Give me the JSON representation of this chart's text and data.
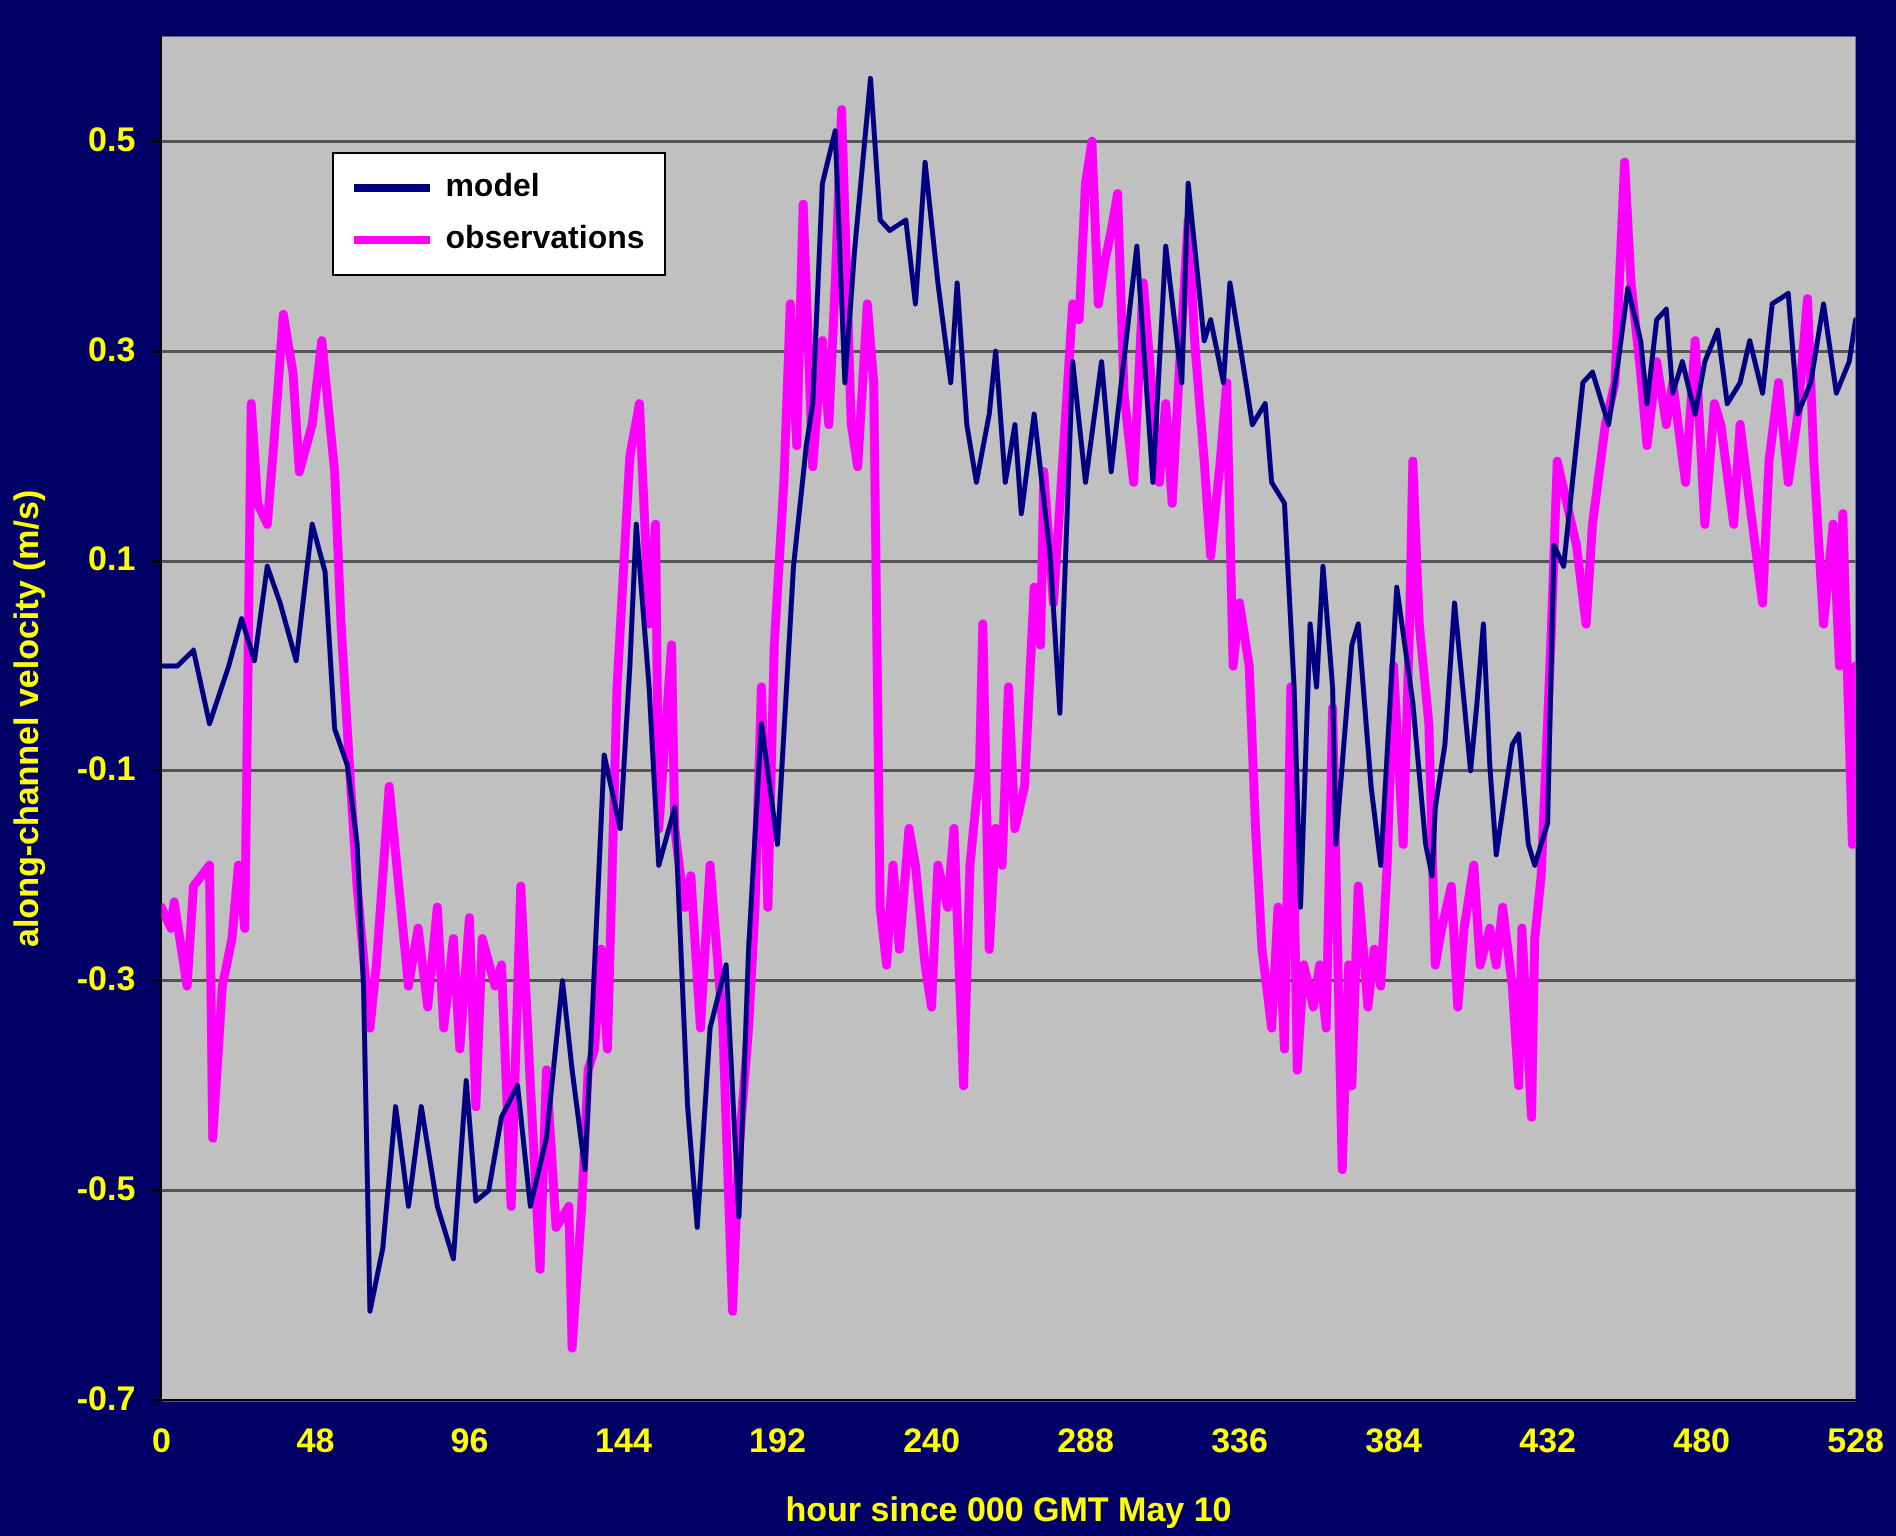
{
  "chart_data": {
    "type": "line",
    "xlabel": "hour since 000 GMT May 10",
    "ylabel": "along-channel velocity (m/s)",
    "xlim": [
      0,
      528
    ],
    "xticks": [
      0,
      48,
      96,
      144,
      192,
      240,
      288,
      336,
      384,
      432,
      480,
      528
    ],
    "ylim": [
      -0.7,
      0.6
    ],
    "yticks": [
      -0.7,
      -0.5,
      -0.3,
      -0.1,
      0.1,
      0.3,
      0.5
    ],
    "grid": "y",
    "legend": "top left",
    "marker": "none",
    "line_style": "solid",
    "series": [
      {
        "name": "model",
        "color": "#000080",
        "x": [
          0,
          5,
          10,
          15,
          21,
          25,
          29,
          33,
          37,
          42,
          47,
          51,
          54,
          58,
          61,
          63,
          65,
          69,
          73,
          77,
          81,
          86,
          91,
          95,
          98,
          102,
          106,
          111,
          115,
          120,
          125,
          128,
          132,
          135,
          138,
          143,
          146,
          148,
          152,
          155,
          160,
          164,
          167,
          171,
          176,
          180,
          183,
          187,
          192,
          197,
          201,
          203,
          206,
          210,
          213,
          216,
          221,
          224,
          227,
          232,
          235,
          238,
          242,
          246,
          248,
          251,
          254,
          258,
          260,
          263,
          266,
          268,
          272,
          277,
          280,
          284,
          288,
          293,
          296,
          304,
          309,
          313,
          318,
          320,
          325,
          327,
          331,
          333,
          338,
          340,
          344,
          346,
          350,
          353,
          355,
          358,
          360,
          362,
          365,
          366,
          371,
          373,
          377,
          380,
          385,
          390,
          394,
          396,
          397,
          400,
          403,
          406,
          408,
          410,
          412,
          414,
          416,
          421,
          423,
          426,
          428,
          432,
          434,
          437,
          443,
          446,
          451,
          454,
          457,
          461,
          463,
          466,
          469,
          471,
          474,
          478,
          481,
          485,
          488,
          492,
          495,
          499,
          502,
          507,
          510,
          514,
          518,
          522,
          526,
          528
        ],
        "values": [
          0.0,
          0.0,
          0.015,
          -0.055,
          0.0,
          0.045,
          0.005,
          0.095,
          0.06,
          0.005,
          0.135,
          0.09,
          -0.06,
          -0.095,
          -0.17,
          -0.305,
          -0.615,
          -0.555,
          -0.42,
          -0.515,
          -0.42,
          -0.515,
          -0.565,
          -0.395,
          -0.51,
          -0.5,
          -0.43,
          -0.4,
          -0.515,
          -0.45,
          -0.3,
          -0.385,
          -0.48,
          -0.285,
          -0.085,
          -0.155,
          0.0,
          0.135,
          -0.02,
          -0.19,
          -0.135,
          -0.42,
          -0.535,
          -0.345,
          -0.285,
          -0.525,
          -0.27,
          -0.055,
          -0.17,
          0.095,
          0.21,
          0.25,
          0.46,
          0.51,
          0.27,
          0.395,
          0.56,
          0.425,
          0.415,
          0.425,
          0.345,
          0.48,
          0.365,
          0.27,
          0.365,
          0.23,
          0.175,
          0.24,
          0.3,
          0.175,
          0.23,
          0.145,
          0.24,
          0.105,
          -0.045,
          0.29,
          0.175,
          0.29,
          0.185,
          0.4,
          0.175,
          0.4,
          0.27,
          0.46,
          0.31,
          0.33,
          0.27,
          0.365,
          0.27,
          0.23,
          0.25,
          0.175,
          0.155,
          -0.02,
          -0.23,
          0.04,
          -0.02,
          0.095,
          -0.02,
          -0.17,
          0.02,
          0.04,
          -0.115,
          -0.19,
          0.075,
          -0.035,
          -0.17,
          -0.2,
          -0.135,
          -0.075,
          0.06,
          -0.035,
          -0.1,
          -0.035,
          0.04,
          -0.095,
          -0.18,
          -0.075,
          -0.065,
          -0.17,
          -0.19,
          -0.15,
          0.115,
          0.095,
          0.27,
          0.28,
          0.23,
          0.29,
          0.36,
          0.31,
          0.25,
          0.33,
          0.34,
          0.26,
          0.29,
          0.24,
          0.29,
          0.32,
          0.25,
          0.27,
          0.31,
          0.26,
          0.345,
          0.355,
          0.24,
          0.27,
          0.345,
          0.26,
          0.29,
          0.33
        ]
      },
      {
        "name": "observations",
        "color": "#ff00ff",
        "x": [
          0,
          3,
          4,
          8,
          10,
          15,
          16,
          19,
          22,
          24,
          26,
          28,
          30,
          33,
          35,
          38,
          41,
          43,
          47,
          50,
          54,
          56,
          59,
          61,
          65,
          67,
          71,
          74,
          77,
          80,
          83,
          86,
          88,
          91,
          93,
          96,
          98,
          100,
          104,
          106,
          109,
          112,
          115,
          118,
          120,
          123,
          127,
          128,
          131,
          133,
          135,
          137,
          139,
          142,
          146,
          149,
          152,
          154,
          155,
          159,
          160,
          163,
          165,
          168,
          171,
          175,
          178,
          180,
          183,
          185,
          187,
          189,
          191,
          194,
          196,
          198,
          200,
          203,
          206,
          208,
          210,
          212,
          215,
          217,
          220,
          222,
          224,
          226,
          228,
          230,
          233,
          235,
          238,
          240,
          242,
          245,
          247,
          250,
          252,
          255,
          256,
          258,
          260,
          262,
          264,
          266,
          269,
          272,
          274,
          275,
          278,
          281,
          284,
          286,
          288,
          290,
          292,
          294,
          296,
          298,
          300,
          303,
          306,
          308,
          311,
          313,
          315,
          317,
          320,
          322,
          325,
          327,
          330,
          332,
          334,
          336,
          339,
          341,
          343,
          346,
          348,
          350,
          352,
          354,
          356,
          359,
          361,
          363,
          365,
          368,
          370,
          371,
          373,
          376,
          378,
          380,
          382,
          384,
          387,
          389,
          390,
          392,
          395,
          397,
          399,
          402,
          404,
          406,
          409,
          411,
          414,
          416,
          418,
          421,
          423,
          424,
          427,
          428,
          430,
          433,
          435,
          438,
          441,
          444,
          446,
          450,
          453,
          456,
          458,
          461,
          463,
          466,
          469,
          471,
          475,
          478,
          481,
          484,
          486,
          490,
          492,
          495,
          499,
          501,
          504,
          507,
          510,
          513,
          515,
          518,
          521,
          523,
          524,
          527,
          528
        ],
        "values": [
          -0.23,
          -0.25,
          -0.225,
          -0.305,
          -0.21,
          -0.19,
          -0.45,
          -0.305,
          -0.26,
          -0.19,
          -0.25,
          0.25,
          0.155,
          0.135,
          0.21,
          0.335,
          0.28,
          0.185,
          0.23,
          0.31,
          0.185,
          0.04,
          -0.115,
          -0.21,
          -0.345,
          -0.285,
          -0.115,
          -0.21,
          -0.305,
          -0.25,
          -0.325,
          -0.23,
          -0.345,
          -0.26,
          -0.365,
          -0.24,
          -0.42,
          -0.26,
          -0.305,
          -0.285,
          -0.515,
          -0.21,
          -0.4,
          -0.575,
          -0.385,
          -0.535,
          -0.515,
          -0.65,
          -0.515,
          -0.385,
          -0.365,
          -0.27,
          -0.365,
          -0.02,
          0.2,
          0.25,
          0.04,
          0.135,
          -0.155,
          0.02,
          -0.155,
          -0.23,
          -0.2,
          -0.345,
          -0.19,
          -0.345,
          -0.615,
          -0.46,
          -0.345,
          -0.23,
          -0.02,
          -0.23,
          0.02,
          0.175,
          0.345,
          0.21,
          0.44,
          0.19,
          0.31,
          0.23,
          0.365,
          0.53,
          0.23,
          0.19,
          0.345,
          0.27,
          -0.23,
          -0.285,
          -0.19,
          -0.27,
          -0.155,
          -0.19,
          -0.285,
          -0.325,
          -0.19,
          -0.23,
          -0.155,
          -0.4,
          -0.19,
          -0.095,
          0.04,
          -0.27,
          -0.155,
          -0.19,
          -0.02,
          -0.155,
          -0.115,
          0.075,
          0.02,
          0.185,
          0.06,
          0.2,
          0.345,
          0.33,
          0.46,
          0.5,
          0.345,
          0.385,
          0.415,
          0.45,
          0.26,
          0.175,
          0.365,
          0.29,
          0.175,
          0.25,
          0.155,
          0.27,
          0.425,
          0.31,
          0.195,
          0.105,
          0.195,
          0.27,
          0.0,
          0.06,
          0.0,
          -0.155,
          -0.27,
          -0.345,
          -0.23,
          -0.365,
          -0.02,
          -0.385,
          -0.285,
          -0.325,
          -0.285,
          -0.345,
          -0.04,
          -0.48,
          -0.285,
          -0.4,
          -0.21,
          -0.325,
          -0.27,
          -0.305,
          -0.19,
          0.0,
          -0.17,
          0.04,
          0.195,
          0.04,
          -0.055,
          -0.285,
          -0.25,
          -0.21,
          -0.325,
          -0.25,
          -0.19,
          -0.285,
          -0.25,
          -0.285,
          -0.23,
          -0.305,
          -0.4,
          -0.25,
          -0.43,
          -0.26,
          -0.2,
          0.02,
          0.195,
          0.155,
          0.115,
          0.04,
          0.135,
          0.23,
          0.27,
          0.48,
          0.365,
          0.28,
          0.21,
          0.29,
          0.23,
          0.27,
          0.175,
          0.31,
          0.135,
          0.25,
          0.23,
          0.135,
          0.23,
          0.155,
          0.06,
          0.195,
          0.27,
          0.175,
          0.24,
          0.35,
          0.195,
          0.04,
          0.135,
          0.0,
          0.145,
          -0.17,
          0.0
        ]
      }
    ]
  }
}
